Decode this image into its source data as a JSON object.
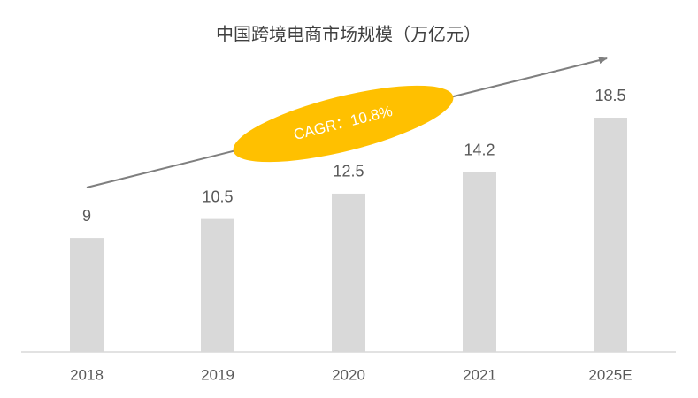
{
  "chart_data": {
    "type": "bar",
    "title": "中国跨境电商市场规模（万亿元）",
    "categories": [
      "2018",
      "2019",
      "2020",
      "2021",
      "2025E"
    ],
    "values": [
      9,
      10.5,
      12.5,
      14.2,
      18.5
    ],
    "color": "#d9d9d9",
    "annotation": "CAGR：10.8%",
    "annotation_color": "#ffc000"
  }
}
